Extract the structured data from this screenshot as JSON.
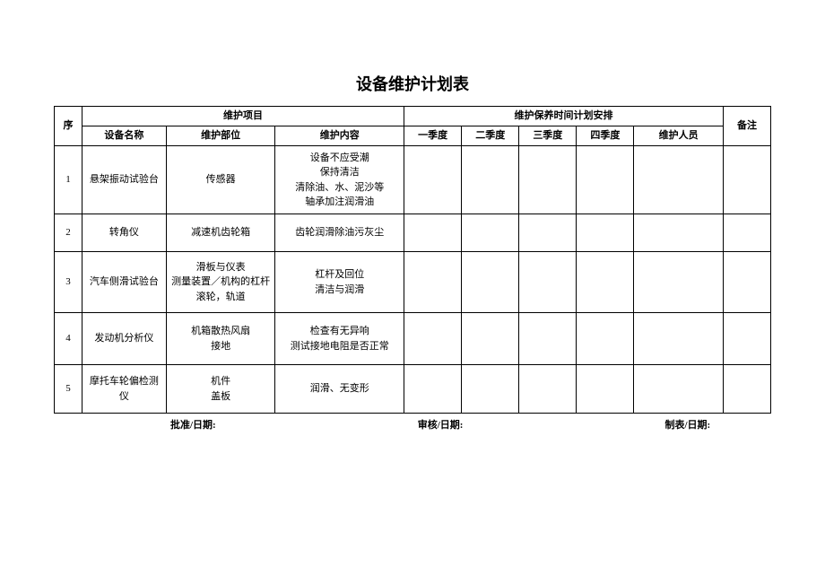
{
  "title": "设备维护计划表",
  "headers": {
    "seq": "序",
    "maint_item": "维护项目",
    "maint_schedule": "维护保养时间计划安排",
    "note": "备注",
    "equip_name": "设备名称",
    "maint_part": "维护部位",
    "maint_content": "维护内容",
    "q1": "一季度",
    "q2": "二季度",
    "q3": "三季度",
    "q4": "四季度",
    "person": "维护人员"
  },
  "rows": [
    {
      "seq": "1",
      "name": "悬架振动试验台",
      "part": "传感器",
      "content": "设备不应受潮\n保持清洁\n清除油、水、泥沙等\n轴承加注润滑油",
      "q1": "",
      "q2": "",
      "q3": "",
      "q4": "",
      "person": "",
      "note": ""
    },
    {
      "seq": "2",
      "name": "转角仪",
      "part": "减速机齿轮箱",
      "content": "齿轮润滑除油污灰尘",
      "q1": "",
      "q2": "",
      "q3": "",
      "q4": "",
      "person": "",
      "note": ""
    },
    {
      "seq": "3",
      "name": "汽车侧滑试验台",
      "part": "滑板与仪表\n测量装置／机构的杠杆\n滚轮，轨道",
      "content": "杠杆及回位\n清洁与润滑",
      "q1": "",
      "q2": "",
      "q3": "",
      "q4": "",
      "person": "",
      "note": ""
    },
    {
      "seq": "4",
      "name": "发动机分析仪",
      "part": "机箱散热风扇\n接地",
      "content": "检查有无异响\n测试接地电阻是否正常",
      "q1": "",
      "q2": "",
      "q3": "",
      "q4": "",
      "person": "",
      "note": ""
    },
    {
      "seq": "5",
      "name": "摩托车轮偏检测仪",
      "part": "机件\n盖板",
      "content": "润滑、无变形",
      "q1": "",
      "q2": "",
      "q3": "",
      "q4": "",
      "person": "",
      "note": ""
    }
  ],
  "footer": {
    "approve": "批准/日期:",
    "review": "审核/日期:",
    "make": "制表/日期:"
  },
  "style": {
    "title_fontsize": 18,
    "body_fontsize": 11,
    "border_color": "#000000",
    "background_color": "#ffffff",
    "text_color": "#000000"
  }
}
